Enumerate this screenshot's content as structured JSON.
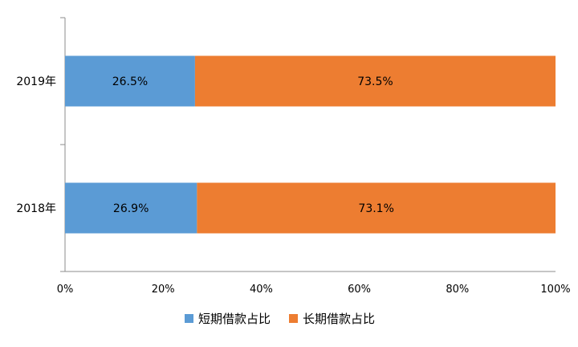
{
  "chart_data": {
    "type": "bar",
    "orientation": "horizontal",
    "stacked": true,
    "categories": [
      "2019年",
      "2018年"
    ],
    "series": [
      {
        "name": "短期借款占比",
        "values": [
          26.5,
          26.9
        ],
        "labels": [
          "26.5%",
          "26.9%"
        ],
        "color": "#5B9BD5"
      },
      {
        "name": "长期借款占比",
        "values": [
          73.5,
          73.1
        ],
        "labels": [
          "73.5%",
          "73.1%"
        ],
        "color": "#ED7D31"
      }
    ],
    "x_ticks": [
      "0%",
      "20%",
      "40%",
      "60%",
      "80%",
      "100%"
    ],
    "xlim": [
      0,
      100
    ],
    "grid": false,
    "legend_position": "bottom"
  }
}
